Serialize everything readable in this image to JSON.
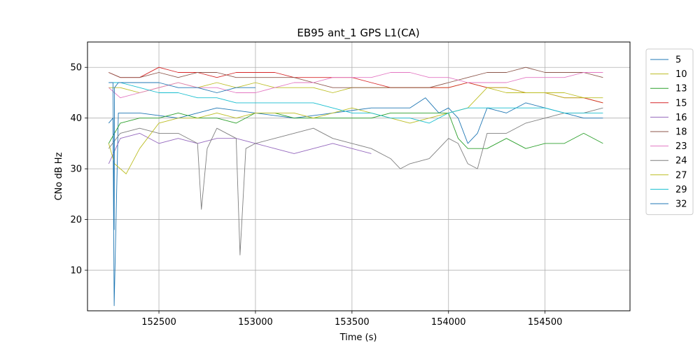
{
  "chart_data": {
    "type": "line",
    "title": "EB95 ant_1 GPS L1(CA)",
    "xlabel": "Time (s)",
    "ylabel": "CNo dB Hz",
    "xlim": [
      152130,
      154940
    ],
    "ylim": [
      2,
      55
    ],
    "xticks": [
      152500,
      153000,
      153500,
      154000,
      154500
    ],
    "yticks": [
      10,
      20,
      30,
      40,
      50
    ],
    "grid": true,
    "legend_position": "right outside",
    "series": [
      {
        "name": "5",
        "color": "#1f77b4",
        "x": [
          152240,
          152262,
          152268,
          152290,
          152400,
          152600,
          152800,
          153000,
          153200,
          153400,
          153600,
          153800,
          153880,
          153950,
          154000,
          154050,
          154100,
          154150,
          154200,
          154300,
          154400,
          154500,
          154600,
          154700,
          154800
        ],
        "y": [
          39,
          40,
          3,
          41,
          41,
          40,
          42,
          41,
          40,
          41,
          42,
          42,
          44,
          41,
          42,
          40,
          35,
          37,
          42,
          41,
          43,
          42,
          41,
          40,
          40
        ]
      },
      {
        "name": "10",
        "color": "#bcbd22",
        "x": [
          152240,
          152300,
          152400,
          152500,
          152600,
          152700,
          152800,
          152900,
          153000,
          153100,
          153200,
          153300,
          153400,
          153500,
          153600,
          153700,
          153800,
          153900,
          154000,
          154100,
          154200,
          154300,
          154400,
          154500,
          154600,
          154700,
          154800
        ],
        "y": [
          46,
          46,
          45,
          46,
          47,
          46,
          47,
          46,
          47,
          46,
          46,
          46,
          45,
          46,
          46,
          46,
          46,
          46,
          46,
          47,
          46,
          45,
          45,
          45,
          45,
          44,
          43
        ]
      },
      {
        "name": "13",
        "color": "#2ca02c",
        "x": [
          152240,
          152300,
          152400,
          152500,
          152600,
          152700,
          152800,
          152900,
          153000,
          153100,
          153200,
          153300,
          153400,
          153500,
          153600,
          153700,
          153800,
          153900,
          154000,
          154050,
          154100,
          154200,
          154300,
          154400,
          154500,
          154600,
          154700,
          154800
        ],
        "y": [
          35,
          39,
          40,
          40,
          41,
          40,
          40,
          39,
          41,
          41,
          40,
          40,
          40,
          40,
          40,
          41,
          41,
          41,
          41,
          36,
          34,
          34,
          36,
          34,
          35,
          35,
          37,
          35
        ]
      },
      {
        "name": "15",
        "color": "#d62728",
        "x": [
          152240,
          152300,
          152400,
          152500,
          152600,
          152700,
          152800,
          152900,
          153000,
          153100,
          153200,
          153300,
          153400,
          153500,
          153600,
          153700,
          153800,
          153900,
          154000,
          154100,
          154200,
          154300,
          154400,
          154500,
          154600,
          154700,
          154800
        ],
        "y": [
          49,
          48,
          48,
          50,
          49,
          49,
          48,
          49,
          49,
          49,
          48,
          48,
          48,
          48,
          47,
          46,
          46,
          46,
          46,
          47,
          46,
          46,
          45,
          45,
          44,
          44,
          43
        ]
      },
      {
        "name": "16",
        "color": "#9467bd",
        "x": [
          152240,
          152300,
          152400,
          152500,
          152600,
          152700,
          152800,
          152900,
          153000,
          153100,
          153200,
          153300,
          153400,
          153500,
          153600
        ],
        "y": [
          31,
          36,
          37,
          35,
          36,
          35,
          36,
          36,
          35,
          34,
          33,
          34,
          35,
          34,
          33
        ]
      },
      {
        "name": "18",
        "color": "#8c564b",
        "x": [
          152240,
          152300,
          152400,
          152500,
          152600,
          152700,
          152800,
          152900,
          153000,
          153100,
          153200,
          153300,
          153400,
          153500,
          153600,
          153700,
          153800,
          153900,
          154000,
          154100,
          154200,
          154300,
          154400,
          154500,
          154600,
          154700,
          154800
        ],
        "y": [
          49,
          48,
          48,
          49,
          48,
          49,
          49,
          48,
          48,
          48,
          48,
          47,
          46,
          46,
          46,
          46,
          46,
          46,
          47,
          48,
          49,
          49,
          50,
          49,
          49,
          49,
          48
        ]
      },
      {
        "name": "23",
        "color": "#e377c2",
        "x": [
          152240,
          152300,
          152400,
          152500,
          152600,
          152700,
          152800,
          152900,
          153000,
          153100,
          153200,
          153300,
          153400,
          153500,
          153600,
          153700,
          153800,
          153900,
          154000,
          154100,
          154200,
          154300,
          154400,
          154500,
          154600,
          154700,
          154800
        ],
        "y": [
          46,
          44,
          45,
          46,
          47,
          46,
          46,
          45,
          45,
          46,
          47,
          47,
          48,
          48,
          48,
          49,
          49,
          48,
          48,
          47,
          47,
          47,
          48,
          48,
          48,
          49,
          49
        ]
      },
      {
        "name": "24",
        "color": "#7f7f7f",
        "x": [
          152240,
          152300,
          152400,
          152500,
          152600,
          152700,
          152720,
          152750,
          152800,
          152900,
          152920,
          152950,
          153000,
          153100,
          153200,
          153300,
          153400,
          153500,
          153600,
          153700,
          153750,
          153800,
          153900,
          153950,
          154000,
          154050,
          154100,
          154150,
          154200,
          154300,
          154400,
          154500,
          154600,
          154700,
          154800
        ],
        "y": [
          34,
          37,
          38,
          37,
          37,
          35,
          22,
          34,
          38,
          36,
          13,
          34,
          35,
          36,
          37,
          38,
          36,
          35,
          34,
          32,
          30,
          31,
          32,
          34,
          36,
          35,
          31,
          30,
          37,
          37,
          39,
          40,
          41,
          41,
          42
        ]
      },
      {
        "name": "27",
        "color": "#bcbd22",
        "x": [
          152240,
          152270,
          152300,
          152330,
          152400,
          152500,
          152600,
          152700,
          152800,
          152900,
          153000,
          153100,
          153200,
          153300,
          153400,
          153500,
          153600,
          153700,
          153800,
          153900,
          154000,
          154100,
          154200,
          154300,
          154400,
          154500,
          154600,
          154700,
          154800
        ],
        "y": [
          35,
          31,
          30,
          29,
          34,
          39,
          40,
          40,
          41,
          40,
          41,
          41,
          41,
          40,
          41,
          42,
          41,
          40,
          39,
          40,
          41,
          42,
          46,
          46,
          45,
          45,
          44,
          44,
          44
        ]
      },
      {
        "name": "29",
        "color": "#17becf",
        "x": [
          152240,
          152300,
          152400,
          152500,
          152600,
          152700,
          152800,
          152900,
          153000,
          153100,
          153200,
          153300,
          153400,
          153500,
          153600,
          153700,
          153800,
          153900,
          154000,
          154100,
          154200,
          154300,
          154400,
          154500,
          154600,
          154700,
          154800
        ],
        "y": [
          47,
          47,
          46,
          45,
          45,
          44,
          44,
          43,
          43,
          43,
          43,
          43,
          42,
          41,
          41,
          40,
          40,
          39,
          41,
          42,
          42,
          42,
          42,
          42,
          41,
          41,
          41
        ]
      },
      {
        "name": "32",
        "color": "#1f77b4",
        "x": [
          152240,
          152262,
          152268,
          152270,
          152290,
          152330,
          152400,
          152500,
          152600,
          152700,
          152800,
          152900,
          153000
        ],
        "y": [
          47,
          47,
          18,
          46,
          47,
          47,
          47,
          47,
          46,
          46,
          45,
          46,
          46
        ]
      }
    ]
  }
}
